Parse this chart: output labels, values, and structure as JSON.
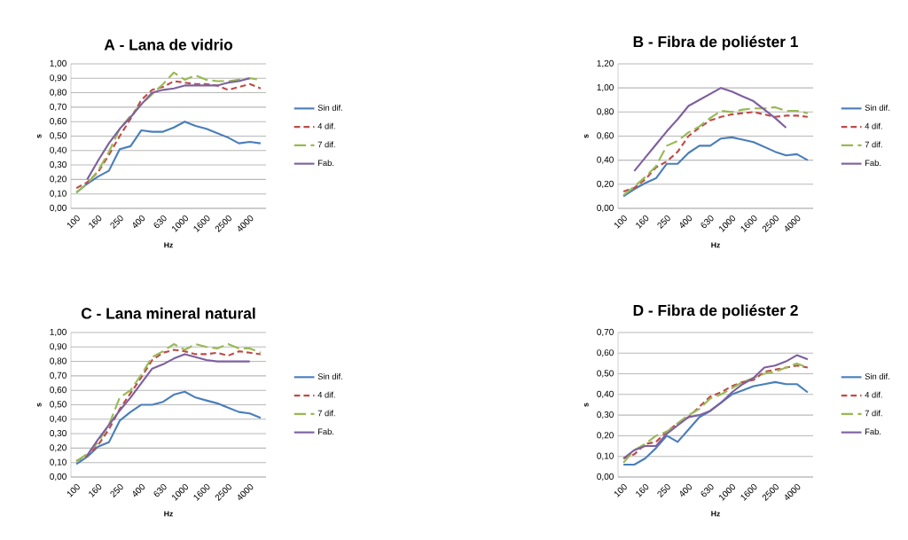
{
  "chart_data": [
    {
      "type": "line",
      "title": "A - Lana de vidrio",
      "xlabel": "Hz",
      "ylabel": "s",
      "categories": [
        "100",
        null,
        "160",
        null,
        "250",
        null,
        "400",
        null,
        "630",
        null,
        "1000",
        null,
        "1600",
        null,
        "2500",
        null,
        "4000",
        null
      ],
      "ylim": [
        0,
        1.0
      ],
      "yticks": [
        {
          "value": 0,
          "label": "0,00"
        },
        {
          "value": 0.1,
          "label": "0,10"
        },
        {
          "value": 0.2,
          "label": "0,20"
        },
        {
          "value": 0.3,
          "label": "0,30"
        },
        {
          "value": 0.4,
          "label": "0,40"
        },
        {
          "value": 0.5,
          "label": "0,50"
        },
        {
          "value": 0.6,
          "label": "0,60"
        },
        {
          "value": 0.7,
          "label": "0,70"
        },
        {
          "value": 0.8,
          "label": "0,80"
        },
        {
          "value": 0.9,
          "label": "0,90"
        },
        {
          "value": 1.0,
          "label": "1,00"
        }
      ],
      "grid": "y",
      "legend": "right",
      "series": [
        {
          "name": "Sin dif.",
          "color": "#4a7ebb",
          "line_style": "solid",
          "values": [
            0.11,
            0.17,
            0.22,
            0.26,
            0.41,
            0.43,
            0.54,
            0.53,
            0.53,
            0.56,
            0.6,
            0.57,
            0.55,
            0.52,
            0.49,
            0.45,
            0.46,
            0.45
          ]
        },
        {
          "name": "4 dif.",
          "color": "#be4b48",
          "line_style": "dashed",
          "values": [
            0.14,
            0.18,
            0.25,
            0.37,
            0.5,
            0.62,
            0.75,
            0.82,
            0.84,
            0.88,
            0.87,
            0.86,
            0.86,
            0.85,
            0.82,
            0.84,
            0.86,
            0.83
          ]
        },
        {
          "name": "7 dif.",
          "color": "#98b954",
          "line_style": "longdashed",
          "values": [
            0.11,
            0.17,
            0.26,
            0.39,
            0.55,
            0.64,
            0.72,
            0.79,
            0.86,
            0.94,
            0.89,
            0.92,
            0.89,
            0.88,
            0.88,
            0.89,
            0.9,
            0.89
          ]
        },
        {
          "name": "Fab.",
          "color": "#7d60a0",
          "line_style": "solid",
          "values": [
            null,
            0.2,
            0.33,
            0.45,
            0.55,
            0.63,
            0.72,
            0.8,
            0.82,
            0.83,
            0.85,
            0.85,
            0.85,
            0.85,
            0.87,
            0.88,
            0.9,
            null
          ]
        }
      ]
    },
    {
      "type": "line",
      "title": "B - Fibra de poliéster 1",
      "xlabel": "Hz",
      "ylabel": "s",
      "categories": [
        "100",
        null,
        "160",
        null,
        "250",
        null,
        "400",
        null,
        "630",
        null,
        "1000",
        null,
        "1600",
        null,
        "2500",
        null,
        "4000",
        null
      ],
      "ylim": [
        0,
        1.2
      ],
      "yticks": [
        {
          "value": 0,
          "label": "0,00"
        },
        {
          "value": 0.2,
          "label": "0,20"
        },
        {
          "value": 0.4,
          "label": "0,40"
        },
        {
          "value": 0.6,
          "label": "0,60"
        },
        {
          "value": 0.8,
          "label": "0,80"
        },
        {
          "value": 1.0,
          "label": "1,00"
        },
        {
          "value": 1.2,
          "label": "1,20"
        }
      ],
      "grid": "y",
      "legend": "right",
      "series": [
        {
          "name": "Sin dif.",
          "color": "#4a7ebb",
          "line_style": "solid",
          "values": [
            0.1,
            0.16,
            0.21,
            0.25,
            0.37,
            0.37,
            0.46,
            0.52,
            0.52,
            0.58,
            0.59,
            0.57,
            0.55,
            0.51,
            0.47,
            0.44,
            0.45,
            0.4
          ]
        },
        {
          "name": "4 dif.",
          "color": "#be4b48",
          "line_style": "dashed",
          "values": [
            0.14,
            0.17,
            0.24,
            0.34,
            0.39,
            0.47,
            0.6,
            0.67,
            0.73,
            0.76,
            0.78,
            0.79,
            0.8,
            0.78,
            0.76,
            0.77,
            0.77,
            0.76
          ]
        },
        {
          "name": "7 dif.",
          "color": "#98b954",
          "line_style": "longdashed",
          "values": [
            0.11,
            0.18,
            0.26,
            0.35,
            0.52,
            0.56,
            0.63,
            0.68,
            0.75,
            0.81,
            0.8,
            0.82,
            0.83,
            0.83,
            0.84,
            0.81,
            0.81,
            0.79
          ]
        },
        {
          "name": "Fab.",
          "color": "#7d60a0",
          "line_style": "solid",
          "values": [
            null,
            0.31,
            0.42,
            0.53,
            0.64,
            0.74,
            0.85,
            0.9,
            0.95,
            1.0,
            0.97,
            0.93,
            0.89,
            0.82,
            0.75,
            0.67,
            null,
            null
          ]
        }
      ]
    },
    {
      "type": "line",
      "title": "C - Lana mineral natural",
      "xlabel": "Hz",
      "ylabel": "s",
      "categories": [
        "100",
        null,
        "160",
        null,
        "250",
        null,
        "400",
        null,
        "630",
        null,
        "1000",
        null,
        "1600",
        null,
        "2500",
        null,
        "4000",
        null
      ],
      "ylim": [
        0,
        1.0
      ],
      "yticks": [
        {
          "value": 0,
          "label": "0,00"
        },
        {
          "value": 0.1,
          "label": "0,10"
        },
        {
          "value": 0.2,
          "label": "0,20"
        },
        {
          "value": 0.3,
          "label": "0,30"
        },
        {
          "value": 0.4,
          "label": "0,40"
        },
        {
          "value": 0.5,
          "label": "0,50"
        },
        {
          "value": 0.6,
          "label": "0,60"
        },
        {
          "value": 0.7,
          "label": "0,70"
        },
        {
          "value": 0.8,
          "label": "0,80"
        },
        {
          "value": 0.9,
          "label": "0,90"
        },
        {
          "value": 1.0,
          "label": "1,00"
        }
      ],
      "grid": "y",
      "legend": "right",
      "series": [
        {
          "name": "Sin dif.",
          "color": "#4a7ebb",
          "line_style": "solid",
          "values": [
            0.09,
            0.14,
            0.21,
            0.24,
            0.39,
            0.45,
            0.5,
            0.5,
            0.52,
            0.57,
            0.59,
            0.55,
            0.53,
            0.51,
            0.48,
            0.45,
            0.44,
            0.41
          ]
        },
        {
          "name": "4 dif.",
          "color": "#be4b48",
          "line_style": "dashed",
          "values": [
            0.11,
            0.15,
            0.22,
            0.33,
            0.47,
            0.58,
            0.69,
            0.81,
            0.86,
            0.88,
            0.87,
            0.85,
            0.85,
            0.86,
            0.84,
            0.87,
            0.86,
            0.85
          ]
        },
        {
          "name": "7 dif.",
          "color": "#98b954",
          "line_style": "longdashed",
          "values": [
            0.11,
            0.16,
            0.24,
            0.36,
            0.55,
            0.6,
            0.71,
            0.83,
            0.87,
            0.92,
            0.88,
            0.92,
            0.9,
            0.89,
            0.92,
            0.89,
            0.89,
            0.86
          ]
        },
        {
          "name": "Fab.",
          "color": "#7d60a0",
          "line_style": "solid",
          "values": [
            null,
            0.15,
            0.26,
            0.36,
            0.46,
            0.55,
            0.65,
            0.75,
            0.78,
            0.82,
            0.85,
            0.83,
            0.81,
            0.8,
            0.8,
            0.8,
            0.8,
            null
          ]
        }
      ]
    },
    {
      "type": "line",
      "title": "D - Fibra de poliéster 2",
      "xlabel": "Hz",
      "ylabel": "s",
      "categories": [
        "100",
        null,
        "160",
        null,
        "250",
        null,
        "400",
        null,
        "630",
        null,
        "1000",
        null,
        "1600",
        null,
        "2500",
        null,
        "4000",
        null
      ],
      "ylim": [
        0,
        0.7
      ],
      "yticks": [
        {
          "value": 0,
          "label": "0,00"
        },
        {
          "value": 0.1,
          "label": "0,10"
        },
        {
          "value": 0.2,
          "label": "0,20"
        },
        {
          "value": 0.3,
          "label": "0,30"
        },
        {
          "value": 0.4,
          "label": "0,40"
        },
        {
          "value": 0.5,
          "label": "0,50"
        },
        {
          "value": 0.6,
          "label": "0,60"
        },
        {
          "value": 0.7,
          "label": "0,70"
        }
      ],
      "grid": "y",
      "legend": "right",
      "series": [
        {
          "name": "Sin dif.",
          "color": "#4a7ebb",
          "line_style": "solid",
          "values": [
            0.06,
            0.06,
            0.09,
            0.14,
            0.2,
            0.17,
            0.23,
            0.29,
            0.32,
            0.36,
            0.4,
            0.42,
            0.44,
            0.45,
            0.46,
            0.45,
            0.45,
            0.41
          ]
        },
        {
          "name": "4 dif.",
          "color": "#be4b48",
          "line_style": "dashed",
          "values": [
            0.09,
            0.11,
            0.16,
            0.17,
            0.22,
            0.26,
            0.29,
            0.34,
            0.39,
            0.41,
            0.44,
            0.46,
            0.47,
            0.51,
            0.52,
            0.53,
            0.54,
            0.53
          ]
        },
        {
          "name": "7 dif.",
          "color": "#98b954",
          "line_style": "longdashed",
          "values": [
            0.07,
            0.13,
            0.16,
            0.2,
            0.22,
            0.26,
            0.3,
            0.33,
            0.38,
            0.4,
            0.43,
            0.46,
            0.48,
            0.5,
            0.51,
            0.53,
            0.55,
            0.53
          ]
        },
        {
          "name": "Fab.",
          "color": "#7d60a0",
          "line_style": "solid",
          "values": [
            0.09,
            0.13,
            0.15,
            0.15,
            0.21,
            0.25,
            0.29,
            0.3,
            0.32,
            0.36,
            0.41,
            0.45,
            0.48,
            0.53,
            0.54,
            0.56,
            0.59,
            0.57
          ]
        }
      ]
    }
  ]
}
